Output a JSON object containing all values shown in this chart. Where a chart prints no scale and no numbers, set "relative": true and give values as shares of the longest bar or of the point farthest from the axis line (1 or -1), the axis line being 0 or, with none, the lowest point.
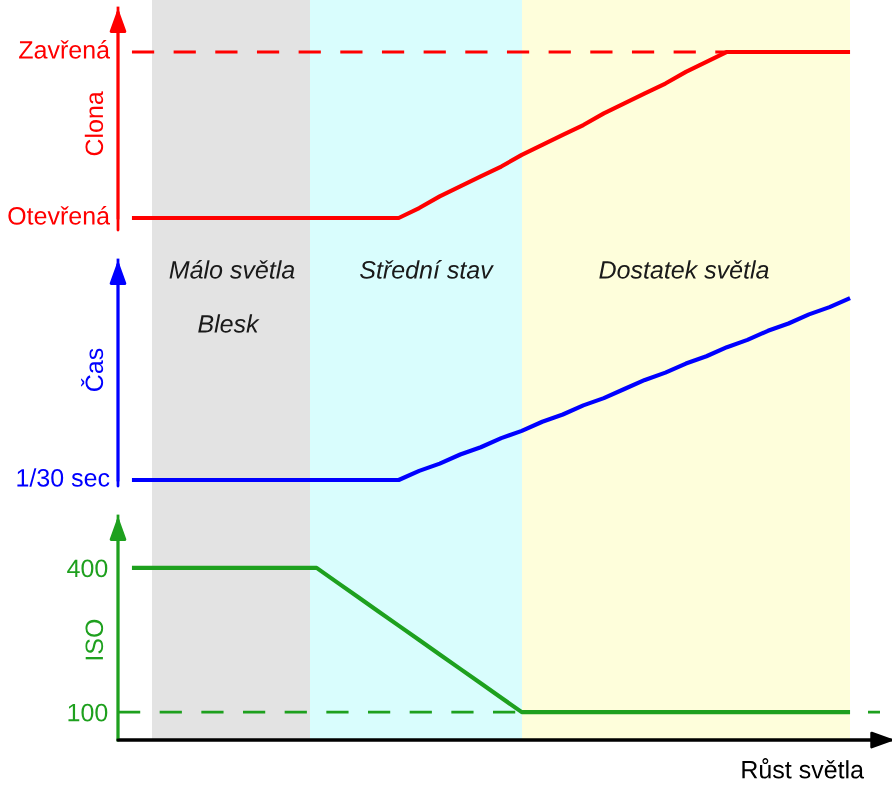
{
  "chart_data": [
    {
      "type": "line",
      "relative": true,
      "ylabel": "Clona",
      "categories": [
        null,
        null,
        null,
        null,
        null,
        null,
        null,
        null,
        null,
        null,
        null,
        null,
        null,
        null,
        null,
        null,
        null,
        null,
        null,
        null,
        null,
        null,
        null,
        null,
        null,
        null,
        null,
        null,
        null,
        null,
        null,
        null,
        null,
        null,
        null,
        null
      ],
      "series": [
        {
          "color": "#ff0000",
          "line_style": "dashed",
          "values": [
            1,
            1,
            1,
            1,
            1,
            1,
            1,
            1,
            1,
            1,
            1,
            1,
            1,
            1,
            1,
            1,
            1,
            1,
            1,
            1,
            1,
            1,
            1,
            1,
            1,
            1,
            1,
            1,
            1,
            1,
            null,
            null,
            null,
            null,
            null,
            null
          ]
        },
        {
          "color": "#ff0000",
          "values": [
            0,
            0,
            0,
            0,
            0,
            0,
            0,
            0,
            0,
            0,
            0,
            0,
            0,
            0,
            0.06,
            0.13,
            0.19,
            0.25,
            0.31,
            0.38,
            0.44,
            0.5,
            0.56,
            0.63,
            0.69,
            0.75,
            0.81,
            0.88,
            0.94,
            1,
            1,
            1,
            1,
            1,
            1,
            1
          ]
        }
      ],
      "annotations": [
        "Zavřená",
        "Otevřená"
      ]
    },
    {
      "type": "line",
      "relative": true,
      "ylabel": "Čas",
      "categories": [
        null,
        null,
        null,
        null,
        null,
        null,
        null,
        null,
        null,
        null,
        null,
        null,
        null,
        null,
        null,
        null,
        null,
        null,
        null,
        null,
        null,
        null,
        null,
        null,
        null,
        null,
        null,
        null,
        null,
        null,
        null,
        null,
        null,
        null,
        null,
        null
      ],
      "series": [
        {
          "color": "#0000ff",
          "values": [
            0,
            0,
            0,
            0,
            0,
            0,
            0,
            0,
            0,
            0,
            0,
            0,
            0,
            0,
            0.05,
            0.09,
            0.14,
            0.18,
            0.23,
            0.27,
            0.32,
            0.36,
            0.41,
            0.45,
            0.5,
            0.55,
            0.59,
            0.64,
            0.68,
            0.73,
            0.77,
            0.82,
            0.86,
            0.91,
            0.95,
            1
          ]
        }
      ],
      "annotations": [
        "1/30 sec",
        "Málo světla",
        "Blesk",
        "Střední stav",
        "Dostatek světla"
      ]
    },
    {
      "type": "line",
      "ylabel": "ISO",
      "xlabel": "Růst světla",
      "ylim": [
        42,
        508
      ],
      "yticks": [
        100,
        400
      ],
      "categories": [
        null,
        null,
        null,
        null,
        null,
        null,
        null,
        null,
        null,
        null,
        null,
        null,
        null,
        null,
        null,
        null,
        null,
        null,
        null,
        null,
        null,
        null,
        null,
        null,
        null,
        null,
        null,
        null,
        null,
        null,
        null,
        null,
        null,
        null,
        null,
        null
      ],
      "series": [
        {
          "color": "#1ea01e",
          "values": [
            400,
            400,
            400,
            400,
            400,
            400,
            400,
            400,
            400,
            400,
            370,
            340,
            310,
            280,
            250,
            220,
            190,
            160,
            130,
            100,
            100,
            100,
            100,
            100,
            100,
            100,
            100,
            100,
            100,
            100,
            100,
            100,
            100,
            100,
            100,
            100
          ]
        }
      ],
      "ref_lines": [
        {
          "axis": "y",
          "value": 100,
          "color": "#1ea01e",
          "line_style": "dashed"
        }
      ]
    }
  ]
}
